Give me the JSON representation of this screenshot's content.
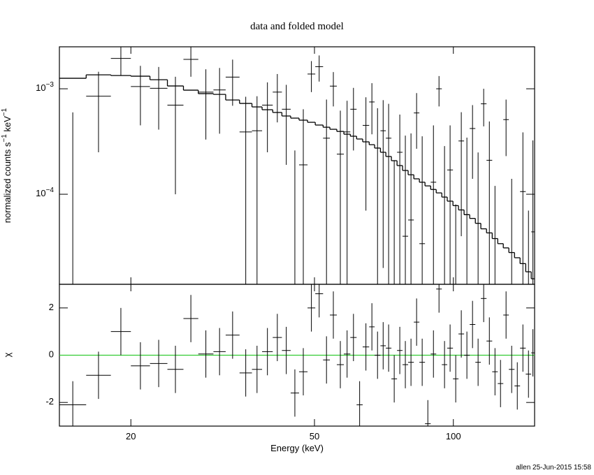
{
  "chart_data": [
    {
      "type": "errorbar",
      "title": "data and folded model",
      "ylabel": "normalized counts s−1 keV−1",
      "xscale": "log",
      "yscale": "log",
      "xlim": [
        14,
        150
      ],
      "ylim": [
        1.4e-05,
        0.0025
      ],
      "xticks": [
        20,
        50,
        100
      ],
      "yticks": [
        {
          "value": 0.0001,
          "label": "10−4"
        },
        {
          "value": 0.001,
          "label": "10−3"
        }
      ],
      "color": "#000000",
      "model_color": "#000000",
      "bin_edges": [
        14,
        16,
        18.1,
        20,
        22,
        24,
        26,
        28,
        30.2,
        32.1,
        34.4,
        36.6,
        38.5,
        40.6,
        42.5,
        44.4,
        46.3,
        48.3,
        50.2,
        52.2,
        54,
        55.9,
        57.9,
        59.8,
        61.7,
        63.6,
        65.7,
        67.5,
        69.5,
        71.4,
        73.4,
        75.5,
        77.6,
        79.8,
        82.1,
        84.4,
        86.8,
        89.3,
        91.8,
        94.4,
        97,
        99.8,
        102.6,
        105.5,
        108.5,
        111.6,
        114.7,
        118,
        121.4,
        124.8,
        128.3,
        131.9,
        135.7,
        139.5,
        143.5,
        147.5,
        150
      ],
      "values": [
        -3e-06,
        0.00085,
        0.00194,
        0.00105,
        0.00101,
        0.0007,
        0.0019,
        0.00093,
        0.000975,
        0.00129,
        0.00039,
        0.0004,
        0.0007,
        0.00093,
        0.00064,
        -0.00019,
        0.00019,
        0.00138,
        0.00162,
        0.00034,
        0.00106,
        0.00024,
        0.00039,
        0.00064,
        -0.00046,
        0.00045,
        0.00075,
        0.000274,
        0.0004,
        0.00034,
        -0.00011,
        0.00025,
        4e-05,
        5.7e-05,
        0.00059,
        3.4e-05,
        -0.00081,
        0.00013,
        0.001,
        -3.4e-05,
        0.00017,
        -0.0002,
        0.00032,
        6.4e-05,
        0.00042,
        -3.1e-05,
        0.00072,
        0.00021,
        -0.00016,
        -0.0003,
        0.00051,
        -0.00014,
        -0.00034,
        0.000106,
        -0.00021,
        4.4e-05
      ],
      "errors": [
        0.0006,
        0.0006,
        0.0006,
        0.0006,
        0.0006,
        0.0006,
        0.0006,
        0.0006,
        0.0006,
        0.0006,
        0.00045,
        0.00045,
        0.00045,
        0.00045,
        0.00045,
        0.00045,
        0.00045,
        0.00045,
        0.00045,
        0.00045,
        0.00038,
        0.00038,
        0.00038,
        0.00038,
        0.00038,
        0.00038,
        0.00038,
        0.00038,
        0.00038,
        0.00038,
        0.00032,
        0.00032,
        0.00032,
        0.00032,
        0.00032,
        0.00032,
        0.00032,
        0.00032,
        0.00032,
        0.00032,
        0.00028,
        0.00028,
        0.00028,
        0.00028,
        0.00028,
        0.00028,
        0.00028,
        0.00028,
        0.00028,
        0.00028,
        0.00028,
        0.00028,
        0.00028,
        0.00028,
        0.00028,
        0.00028
      ],
      "model_values": [
        0.001257,
        0.001356,
        0.001336,
        0.001316,
        0.001219,
        0.001063,
        0.00097,
        0.000899,
        0.000885,
        0.000783,
        0.000726,
        0.000673,
        0.000633,
        0.000596,
        0.000552,
        0.000527,
        0.000504,
        0.000481,
        0.000453,
        0.000432,
        0.000413,
        0.000394,
        0.000371,
        0.000355,
        0.000334,
        0.000314,
        0.000295,
        0.000274,
        0.00025,
        0.000228,
        0.000208,
        0.000187,
        0.000168,
        0.000153,
        0.00014,
        0.00013,
        0.00012,
        0.000111,
        0.000103,
        9.4e-05,
        8.6e-05,
        7.8e-05,
        7.1e-05,
        6.4e-05,
        5.9e-05,
        5.3e-05,
        4.7e-05,
        4.3e-05,
        3.8e-05,
        3.4e-05,
        3.1e-05,
        2.8e-05,
        2.5e-05,
        2.2e-05,
        1.84e-05,
        1.58e-05
      ]
    },
    {
      "type": "residual",
      "xlabel": "Energy (keV)",
      "ylabel": "χ",
      "xscale": "log",
      "xlim": [
        14,
        150
      ],
      "ylim": [
        -3,
        3
      ],
      "xticks": [
        20,
        50,
        100
      ],
      "yticks": [
        -2,
        0,
        2
      ],
      "color": "#000000",
      "reference_line": 0,
      "reference_color": "#33cc33",
      "error": 1,
      "bin_edges": [
        14,
        16,
        18.1,
        20,
        22,
        24,
        26,
        28,
        30.2,
        32.1,
        34.4,
        36.6,
        38.5,
        40.6,
        42.5,
        44.4,
        46.3,
        48.3,
        50.2,
        52.2,
        54,
        55.9,
        57.9,
        59.8,
        61.7,
        63.6,
        65.7,
        67.5,
        69.5,
        71.4,
        73.4,
        75.5,
        77.6,
        79.8,
        82.1,
        84.4,
        86.8,
        89.3,
        91.8,
        94.4,
        97,
        99.8,
        102.6,
        105.5,
        108.5,
        111.6,
        114.7,
        118,
        121.4,
        124.8,
        128.3,
        131.9,
        135.7,
        139.5,
        143.5,
        147.5,
        150
      ],
      "values": [
        -2.1,
        -0.85,
        1.0,
        -0.45,
        -0.35,
        -0.6,
        1.55,
        0.05,
        0.15,
        0.85,
        -0.75,
        -0.6,
        0.15,
        0.75,
        0.2,
        -1.6,
        -0.7,
        2.0,
        2.6,
        -0.2,
        1.7,
        -0.4,
        0.05,
        0.75,
        -2.1,
        0.35,
        1.2,
        0.0,
        0.4,
        0.3,
        -1.0,
        0.2,
        -0.4,
        -0.3,
        1.4,
        -0.3,
        -2.9,
        0.05,
        2.8,
        -0.4,
        0.3,
        -1.0,
        0.9,
        0.0,
        1.3,
        -0.3,
        2.4,
        0.6,
        -0.7,
        -1.2,
        1.7,
        -0.6,
        -1.3,
        0.3,
        -0.8,
        0.1
      ]
    }
  ],
  "footer": "allen 25-Jun-2015 15:58"
}
